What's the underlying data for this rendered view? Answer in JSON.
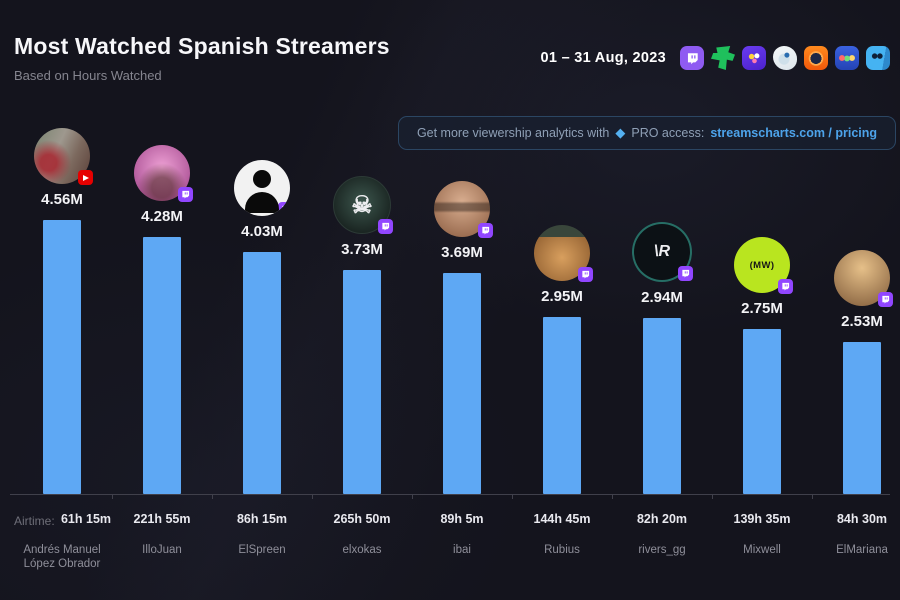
{
  "header": {
    "title": "Most Watched Spanish Streamers",
    "subtitle": "Based on Hours Watched",
    "date_range": "01 – 31 Aug, 2023",
    "platform_icons": [
      {
        "name": "twitch-icon",
        "color": "#8f5bf2"
      },
      {
        "name": "trovo-icon",
        "color": "#1fc05c"
      },
      {
        "name": "nimo-icon",
        "color": "#5a2de0"
      },
      {
        "name": "mascot-icon",
        "color": "#f4f7f9"
      },
      {
        "name": "loco-icon",
        "color": "#ff7300"
      },
      {
        "name": "nonolive-icon",
        "color": "#3a62e0"
      },
      {
        "name": "mildom-icon",
        "color": "#45b3f2"
      }
    ]
  },
  "promo": {
    "text_before": "Get more viewership analytics with",
    "diamond": "◆",
    "text_mid": "PRO access:",
    "link": "streamscharts.com / pricing"
  },
  "footer": {
    "airtime_label": "Airtime:"
  },
  "chart_data": {
    "type": "bar",
    "title": "Most Watched Spanish Streamers",
    "subtitle": "Based on Hours Watched",
    "period": "01 – 31 Aug, 2023",
    "metric": "Hours Watched (millions)",
    "bar_color": "#5ea8f4",
    "ylim": [
      0,
      4.6
    ],
    "grid": false,
    "legend": false,
    "categories": [
      "Andrés Manuel López Obrador",
      "IlloJuan",
      "ElSpreen",
      "elxokas",
      "ibai",
      "Rubius",
      "rivers_gg",
      "Mixwell",
      "ElMariana"
    ],
    "values": [
      4.56,
      4.28,
      4.03,
      3.73,
      3.69,
      2.95,
      2.94,
      2.75,
      2.53
    ],
    "value_labels": [
      "4.56M",
      "4.28M",
      "4.03M",
      "3.73M",
      "3.69M",
      "2.95M",
      "2.94M",
      "2.75M",
      "2.53M"
    ],
    "airtimes": [
      "61h 15m",
      "221h 55m",
      "86h 15m",
      "265h 50m",
      "89h 5m",
      "144h 45m",
      "82h 20m",
      "139h 35m",
      "84h 30m"
    ],
    "streamers": [
      {
        "id": "amlo",
        "name_lines": [
          "Andrés Manuel",
          "López Obrador"
        ],
        "value": 4.56,
        "value_label": "4.56M",
        "airtime": "61h 15m",
        "platform": "youtube",
        "avatar_glyph": ""
      },
      {
        "id": "illojuan",
        "name_lines": [
          "IlloJuan"
        ],
        "value": 4.28,
        "value_label": "4.28M",
        "airtime": "221h 55m",
        "platform": "twitch",
        "avatar_glyph": ""
      },
      {
        "id": "elspreen",
        "name_lines": [
          "ElSpreen"
        ],
        "value": 4.03,
        "value_label": "4.03M",
        "airtime": "86h 15m",
        "platform": "twitch",
        "avatar_glyph": ""
      },
      {
        "id": "elxokas",
        "name_lines": [
          "elxokas"
        ],
        "value": 3.73,
        "value_label": "3.73M",
        "airtime": "265h 50m",
        "platform": "twitch",
        "avatar_glyph": "☠"
      },
      {
        "id": "ibai",
        "name_lines": [
          "ibai"
        ],
        "value": 3.69,
        "value_label": "3.69M",
        "airtime": "89h 5m",
        "platform": "twitch",
        "avatar_glyph": ""
      },
      {
        "id": "rubius",
        "name_lines": [
          "Rubius"
        ],
        "value": 2.95,
        "value_label": "2.95M",
        "airtime": "144h 45m",
        "platform": "twitch",
        "avatar_glyph": ""
      },
      {
        "id": "rivers",
        "name_lines": [
          "rivers_gg"
        ],
        "value": 2.94,
        "value_label": "2.94M",
        "airtime": "82h 20m",
        "platform": "twitch",
        "avatar_glyph": "\\R"
      },
      {
        "id": "mixwell",
        "name_lines": [
          "Mixwell"
        ],
        "value": 2.75,
        "value_label": "2.75M",
        "airtime": "139h 35m",
        "platform": "twitch",
        "avatar_glyph": "(MW)"
      },
      {
        "id": "elmariana",
        "name_lines": [
          "ElMariana"
        ],
        "value": 2.53,
        "value_label": "2.53M",
        "airtime": "84h 30m",
        "platform": "twitch",
        "avatar_glyph": ""
      }
    ]
  }
}
